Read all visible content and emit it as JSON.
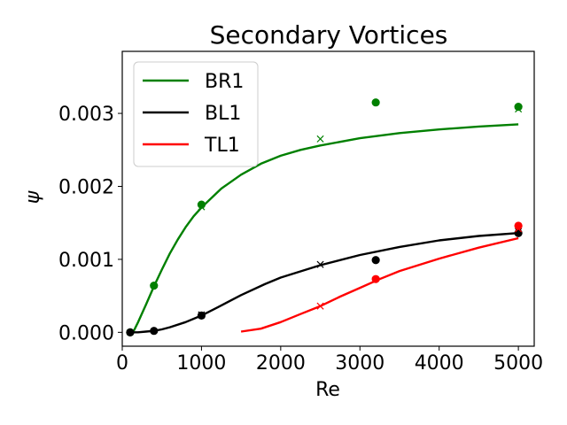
{
  "chart_data": {
    "type": "line",
    "title": "Secondary Vortices",
    "xlabel": "Re",
    "ylabel": "ψ",
    "xlim": [
      0,
      5200
    ],
    "ylim": [
      -0.00019,
      0.00385
    ],
    "xticks": [
      0,
      1000,
      2000,
      3000,
      4000,
      5000
    ],
    "xtick_labels": [
      "0",
      "1000",
      "2000",
      "3000",
      "4000",
      "5000"
    ],
    "yticks": [
      0.0,
      0.001,
      0.002,
      0.003
    ],
    "ytick_labels": [
      "0.000",
      "0.001",
      "0.002",
      "0.003"
    ],
    "grid": false,
    "legend_position": "top-left",
    "series": [
      {
        "name": "BR1",
        "color": "#008000",
        "curve": {
          "x": [
            100,
            150,
            200,
            300,
            400,
            500,
            600,
            700,
            800,
            900,
            1000,
            1250,
            1500,
            1750,
            2000,
            2250,
            2500,
            3000,
            3500,
            4000,
            4500,
            5000
          ],
          "y": [
            0.0,
            3e-05,
            0.00014,
            0.00038,
            0.00063,
            0.00086,
            0.00108,
            0.00127,
            0.00144,
            0.00159,
            0.00171,
            0.00197,
            0.00216,
            0.00231,
            0.00242,
            0.0025,
            0.00256,
            0.00266,
            0.00273,
            0.00278,
            0.00282,
            0.00285
          ]
        },
        "dots": {
          "x": [
            100,
            400,
            1000,
            3200,
            5000
          ],
          "y": [
            0.0,
            0.00064,
            0.00175,
            0.00315,
            0.00309
          ]
        },
        "crosses": {
          "x": [
            1000,
            2500,
            5000
          ],
          "y": [
            0.00172,
            0.00265,
            0.00306
          ]
        }
      },
      {
        "name": "BL1",
        "color": "#000000",
        "curve": {
          "x": [
            100,
            200,
            300,
            400,
            500,
            600,
            800,
            1000,
            1200,
            1500,
            1800,
            2000,
            2500,
            3000,
            3500,
            4000,
            4500,
            5000
          ],
          "y": [
            0.0,
            0.0,
            1e-05,
            2e-05,
            4e-05,
            7e-05,
            0.00014,
            0.00023,
            0.00034,
            0.00051,
            0.00066,
            0.00075,
            0.00092,
            0.00106,
            0.00117,
            0.00126,
            0.00132,
            0.00136
          ]
        },
        "dots": {
          "x": [
            100,
            400,
            1000,
            3200,
            5000
          ],
          "y": [
            0.0,
            2e-05,
            0.00023,
            0.00099,
            0.00136
          ]
        },
        "crosses": {
          "x": [
            1000,
            2500,
            5000
          ],
          "y": [
            0.00024,
            0.00093,
            0.00138
          ]
        }
      },
      {
        "name": "TL1",
        "color": "#ff0000",
        "curve": {
          "x": [
            1500,
            1750,
            2000,
            2250,
            2500,
            2750,
            3000,
            3250,
            3500,
            4000,
            4500,
            5000
          ],
          "y": [
            1e-05,
            5e-05,
            0.00014,
            0.00025,
            0.00036,
            0.00049,
            0.00061,
            0.00073,
            0.00084,
            0.00101,
            0.00116,
            0.00129
          ]
        },
        "dots": {
          "x": [
            3200,
            5000
          ],
          "y": [
            0.00073,
            0.00146
          ]
        },
        "crosses": {
          "x": [
            2500,
            5000
          ],
          "y": [
            0.00036,
            0.00142
          ]
        }
      }
    ]
  }
}
